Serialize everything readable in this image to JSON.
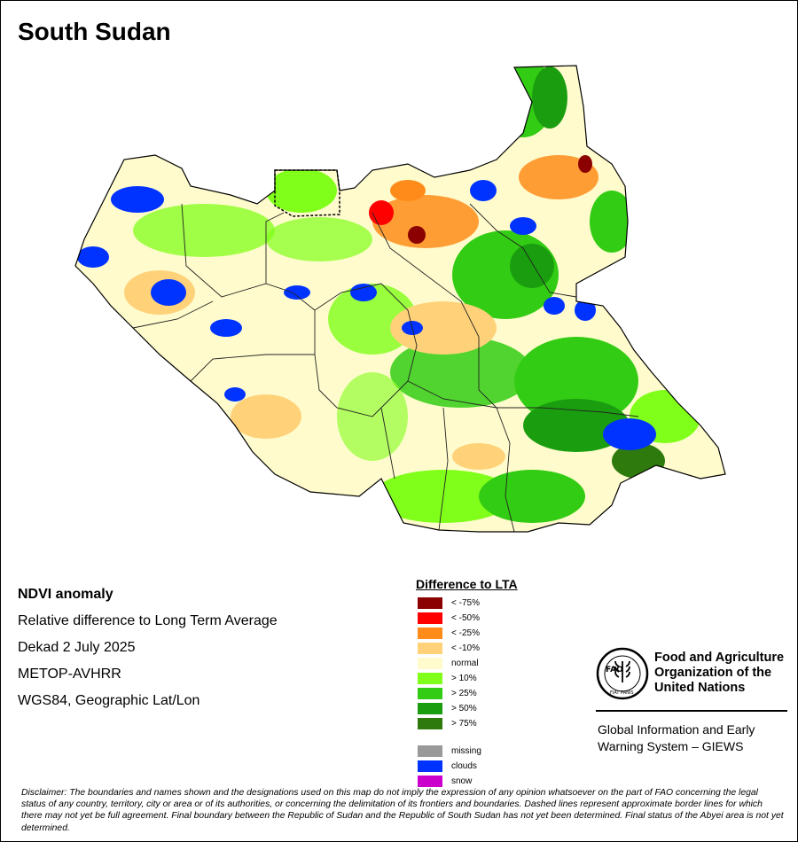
{
  "map_title": "South Sudan",
  "info": {
    "product": "NDVI anomaly",
    "description": "Relative difference to Long Term Average",
    "period": "Dekad 2 July 2025",
    "sensor": "METOP-AVHRR",
    "projection": "WGS84, Geographic Lat/Lon"
  },
  "legend": {
    "title": "Difference to LTA",
    "classes": [
      {
        "label": "< -75%",
        "color": "#8b0000"
      },
      {
        "label": "< -50%",
        "color": "#ff0000"
      },
      {
        "label": "< -25%",
        "color": "#ff8c1a"
      },
      {
        "label": "< -10%",
        "color": "#ffd27a"
      },
      {
        "label": "normal",
        "color": "#fffbcc"
      },
      {
        "label": "> 10%",
        "color": "#80ff1a"
      },
      {
        "label": "> 25%",
        "color": "#33cc14"
      },
      {
        "label": "> 50%",
        "color": "#1a9e0f"
      },
      {
        "label": "> 75%",
        "color": "#2e7a0d"
      }
    ],
    "other": [
      {
        "label": "missing",
        "color": "#999999"
      },
      {
        "label": "clouds",
        "color": "#0033ff"
      },
      {
        "label": "snow",
        "color": "#cc00cc"
      }
    ]
  },
  "organization": {
    "name": "Food and Agriculture Organization of the United Nations",
    "logo_text": "FAO",
    "logo_motto": "FIAT PANIS",
    "system": "Global Information and Early Warning System – GIEWS"
  },
  "disclaimer": "Disclaimer: The boundaries and names shown and the designations used on this map do not imply the expression of any opinion whatsoever on the part of FAO concerning the legal status of any country, territory, city or area or of its authorities, or concerning the delimitation of its frontiers and boundaries. Dashed lines represent approximate border lines for which there may not yet be full agreement.  Final boundary between the Republic of Sudan and the Republic of South Sudan has not yet been determined. Final status of the Abyei area is not yet determined."
}
